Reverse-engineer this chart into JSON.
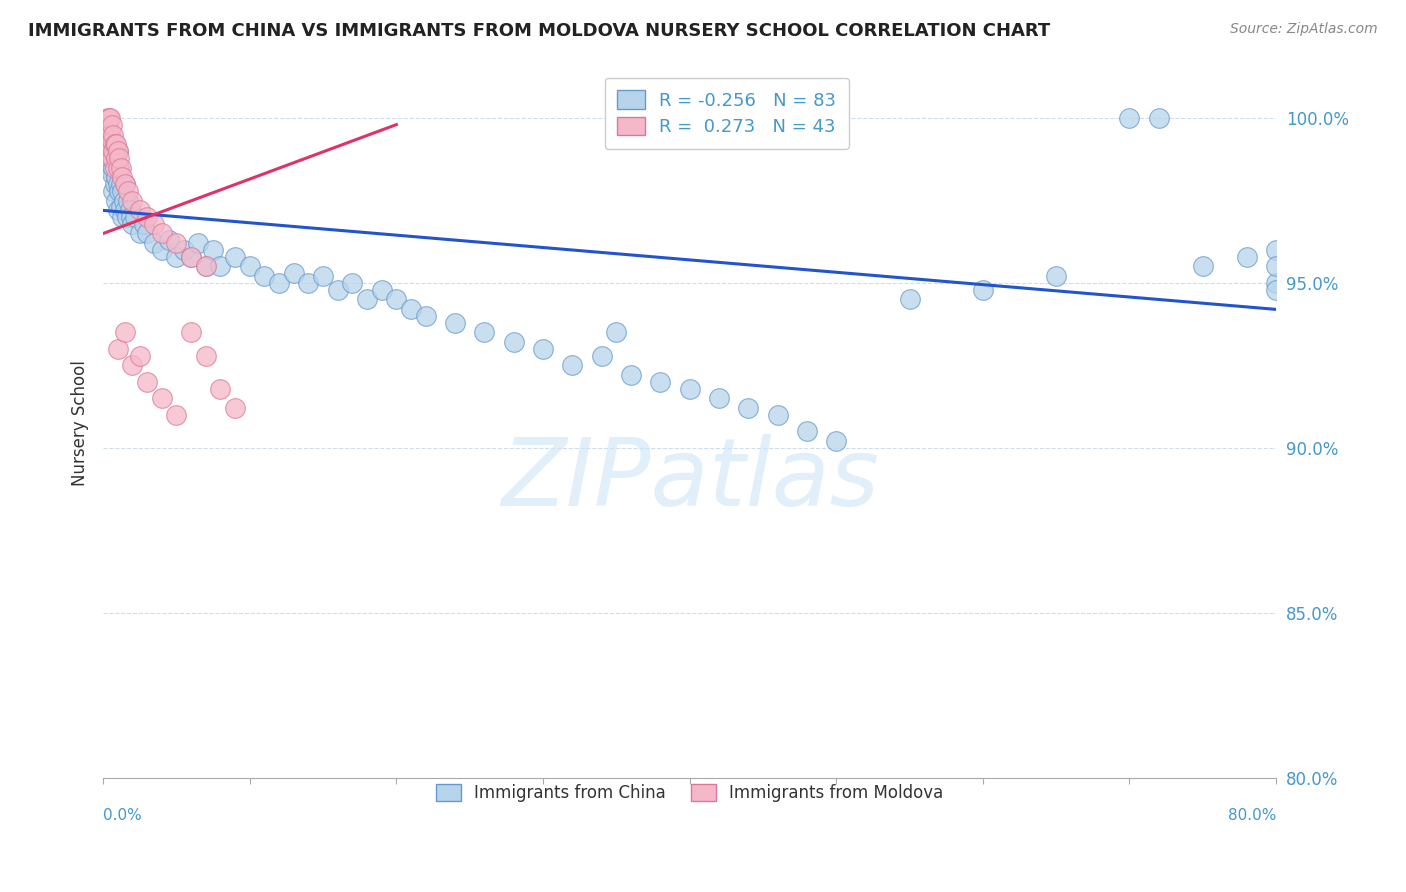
{
  "title": "IMMIGRANTS FROM CHINA VS IMMIGRANTS FROM MOLDOVA NURSERY SCHOOL CORRELATION CHART",
  "source": "Source: ZipAtlas.com",
  "ylabel": "Nursery School",
  "y_ticks": [
    80.0,
    85.0,
    90.0,
    95.0,
    100.0
  ],
  "x_lim": [
    0.0,
    80.0
  ],
  "y_lim": [
    80.0,
    101.5
  ],
  "blue_color": "#b8d4ea",
  "blue_edge": "#6699cc",
  "pink_color": "#f5b8c8",
  "pink_edge": "#dd7799",
  "blue_line_color": "#2255cc",
  "pink_line_color": "#dd3366",
  "watermark": "ZIPatlas",
  "blue_trend": [
    0.0,
    80.0,
    97.2,
    94.2
  ],
  "pink_trend": [
    0.0,
    20.0,
    96.5,
    99.8
  ],
  "blue_x": [
    0.3,
    0.4,
    0.5,
    0.5,
    0.6,
    0.6,
    0.7,
    0.7,
    0.8,
    0.8,
    0.9,
    0.9,
    1.0,
    1.0,
    1.0,
    1.1,
    1.1,
    1.2,
    1.2,
    1.3,
    1.3,
    1.4,
    1.5,
    1.5,
    1.6,
    1.7,
    1.8,
    1.9,
    2.0,
    2.2,
    2.5,
    2.8,
    3.0,
    3.5,
    4.0,
    4.5,
    5.0,
    5.5,
    6.0,
    6.5,
    7.0,
    7.5,
    8.0,
    9.0,
    10.0,
    11.0,
    12.0,
    13.0,
    14.0,
    15.0,
    16.0,
    17.0,
    18.0,
    19.0,
    20.0,
    21.0,
    22.0,
    24.0,
    26.0,
    28.0,
    30.0,
    32.0,
    34.0,
    35.0,
    36.0,
    38.0,
    40.0,
    42.0,
    44.0,
    46.0,
    48.0,
    50.0,
    55.0,
    60.0,
    65.0,
    70.0,
    72.0,
    75.0,
    78.0,
    80.0,
    80.0,
    80.0,
    80.0
  ],
  "blue_y": [
    98.5,
    99.2,
    98.8,
    99.5,
    98.3,
    99.0,
    97.8,
    98.5,
    98.0,
    99.0,
    97.5,
    98.2,
    97.2,
    98.0,
    99.0,
    97.8,
    98.5,
    97.3,
    98.0,
    97.0,
    97.8,
    97.5,
    97.2,
    98.0,
    97.0,
    97.5,
    97.2,
    97.0,
    96.8,
    97.0,
    96.5,
    96.8,
    96.5,
    96.2,
    96.0,
    96.3,
    95.8,
    96.0,
    95.8,
    96.2,
    95.5,
    96.0,
    95.5,
    95.8,
    95.5,
    95.2,
    95.0,
    95.3,
    95.0,
    95.2,
    94.8,
    95.0,
    94.5,
    94.8,
    94.5,
    94.2,
    94.0,
    93.8,
    93.5,
    93.2,
    93.0,
    92.5,
    92.8,
    93.5,
    92.2,
    92.0,
    91.8,
    91.5,
    91.2,
    91.0,
    90.5,
    90.2,
    94.5,
    94.8,
    95.2,
    100.0,
    100.0,
    95.5,
    95.8,
    95.0,
    94.8,
    96.0,
    95.5
  ],
  "pink_x": [
    0.2,
    0.3,
    0.3,
    0.4,
    0.4,
    0.5,
    0.5,
    0.5,
    0.6,
    0.6,
    0.6,
    0.7,
    0.7,
    0.8,
    0.8,
    0.9,
    0.9,
    1.0,
    1.0,
    1.1,
    1.2,
    1.3,
    1.5,
    1.7,
    2.0,
    2.5,
    3.0,
    3.5,
    4.0,
    5.0,
    6.0,
    7.0,
    1.0,
    1.5,
    2.0,
    2.5,
    3.0,
    4.0,
    5.0,
    6.0,
    7.0,
    8.0,
    9.0
  ],
  "pink_y": [
    99.5,
    99.8,
    100.0,
    99.3,
    100.0,
    99.0,
    99.5,
    100.0,
    98.8,
    99.3,
    99.8,
    99.0,
    99.5,
    98.5,
    99.2,
    98.8,
    99.2,
    98.5,
    99.0,
    98.8,
    98.5,
    98.2,
    98.0,
    97.8,
    97.5,
    97.2,
    97.0,
    96.8,
    96.5,
    96.2,
    95.8,
    95.5,
    93.0,
    93.5,
    92.5,
    92.8,
    92.0,
    91.5,
    91.0,
    93.5,
    92.8,
    91.8,
    91.2
  ]
}
